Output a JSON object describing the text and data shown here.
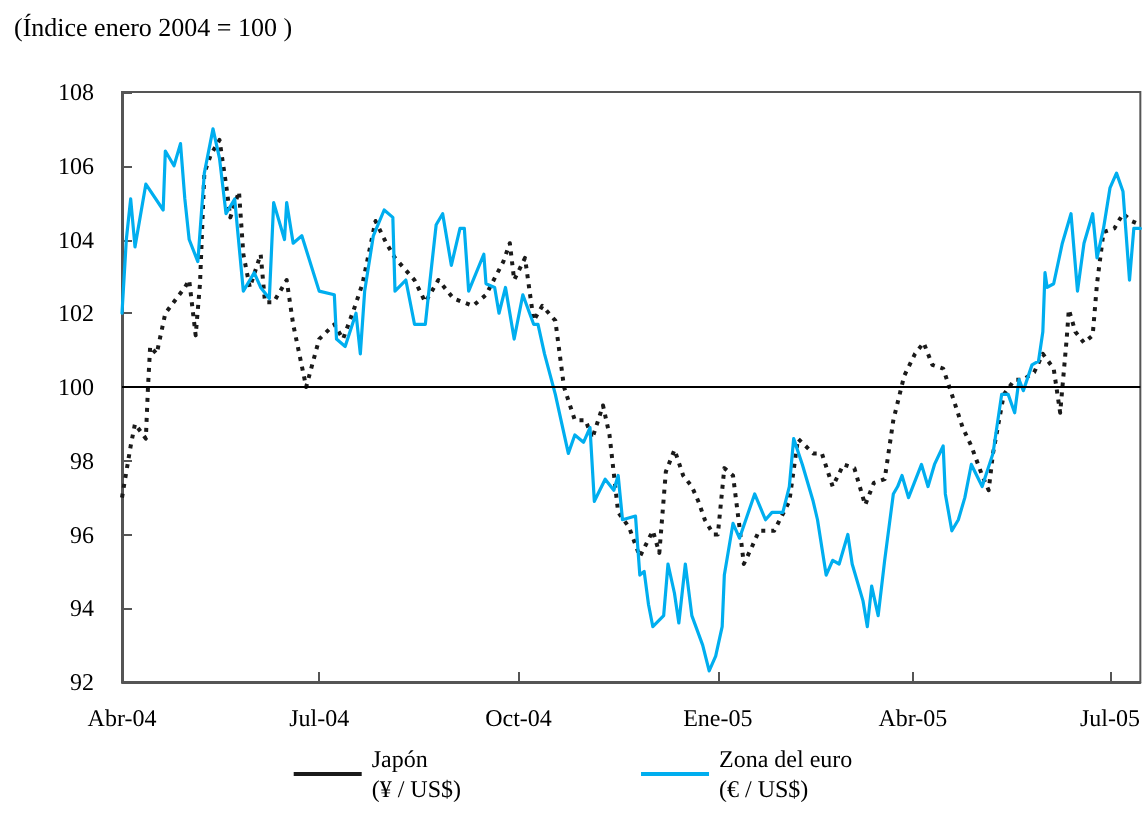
{
  "chart_data": {
    "type": "line",
    "title": "(Índice enero 2004 = 100 )",
    "xlim": [
      "2004-04-01",
      "2005-07-15"
    ],
    "xticks": [
      {
        "value": "2004-04-01",
        "label": "Abr-04"
      },
      {
        "value": "2004-07-01",
        "label": "Jul-04"
      },
      {
        "value": "2004-10-01",
        "label": "Oct-04"
      },
      {
        "value": "2005-01-01",
        "label": "Ene-05"
      },
      {
        "value": "2005-04-01",
        "label": "Abr-05"
      },
      {
        "value": "2005-07-01",
        "label": "Jul-05"
      }
    ],
    "ylim": [
      92,
      108
    ],
    "yticks": [
      92,
      94,
      96,
      98,
      100,
      102,
      104,
      106,
      108
    ],
    "grid": false,
    "legend": "bottom",
    "marker": "none",
    "ref_lines": [
      {
        "axis": "y",
        "value": 100,
        "label": null,
        "color": "#000000"
      }
    ],
    "series": [
      {
        "name": "Japón\n(¥ / US$)",
        "color": "#1a1a1a",
        "line_style": "dotted",
        "x": [
          "2004-04-01",
          "2004-04-03",
          "2004-04-05",
          "2004-04-07",
          "2004-04-12",
          "2004-04-13",
          "2004-04-14",
          "2004-04-17",
          "2004-04-21",
          "2004-04-30",
          "2004-05-02",
          "2004-05-05",
          "2004-05-07",
          "2004-05-09",
          "2004-05-12",
          "2004-05-16",
          "2004-05-19",
          "2004-05-21",
          "2004-05-25",
          "2004-05-27",
          "2004-05-30",
          "2004-06-04",
          "2004-06-06",
          "2004-06-10",
          "2004-06-16",
          "2004-06-19",
          "2004-06-25",
          "2004-07-01",
          "2004-07-08",
          "2004-07-12",
          "2004-07-17",
          "2004-07-21",
          "2004-07-27",
          "2004-08-01",
          "2004-08-05",
          "2004-08-14",
          "2004-08-19",
          "2004-08-25",
          "2004-09-01",
          "2004-09-10",
          "2004-09-16",
          "2004-09-24",
          "2004-09-27",
          "2004-09-29",
          "2004-10-04",
          "2004-10-08",
          "2004-10-12",
          "2004-10-18",
          "2004-10-22",
          "2004-10-27",
          "2004-11-01",
          "2004-11-04",
          "2004-11-09",
          "2004-11-12",
          "2004-11-16",
          "2004-11-21",
          "2004-11-26",
          "2004-12-02",
          "2004-12-05",
          "2004-12-08",
          "2004-12-12",
          "2004-12-16",
          "2004-12-20",
          "2004-12-23",
          "2004-12-26",
          "2004-12-30",
          "2005-01-01",
          "2005-01-04",
          "2005-01-08",
          "2005-01-11",
          "2005-01-13",
          "2005-01-17",
          "2005-01-20",
          "2005-01-27",
          "2005-02-03",
          "2005-02-07",
          "2005-02-14",
          "2005-02-18",
          "2005-02-23",
          "2005-02-28",
          "2005-03-05",
          "2005-03-10",
          "2005-03-14",
          "2005-03-19",
          "2005-03-23",
          "2005-03-28",
          "2005-04-02",
          "2005-04-06",
          "2005-04-10",
          "2005-04-15",
          "2005-04-19",
          "2005-04-24",
          "2005-04-28",
          "2005-05-03",
          "2005-05-06",
          "2005-05-08",
          "2005-05-13",
          "2005-05-18",
          "2005-05-22",
          "2005-05-27",
          "2005-05-31",
          "2005-06-05",
          "2005-06-08",
          "2005-06-11",
          "2005-06-12",
          "2005-06-15",
          "2005-06-19",
          "2005-06-23",
          "2005-06-25",
          "2005-06-28",
          "2005-07-03",
          "2005-07-07",
          "2005-07-11",
          "2005-07-15"
        ],
        "values": [
          97.0,
          97.7,
          98.4,
          99.0,
          98.6,
          100.0,
          101.1,
          100.9,
          102.0,
          102.7,
          102.9,
          101.4,
          102.8,
          105.8,
          106.3,
          106.7,
          105.5,
          104.6,
          105.3,
          103.6,
          102.7,
          103.6,
          102.3,
          102.3,
          102.9,
          101.7,
          100.0,
          101.3,
          101.7,
          101.3,
          102.1,
          102.8,
          104.5,
          103.9,
          103.5,
          102.9,
          102.3,
          102.9,
          102.4,
          102.2,
          102.5,
          103.4,
          103.9,
          102.9,
          103.5,
          101.8,
          102.2,
          101.8,
          100.0,
          99.1,
          99.1,
          98.6,
          99.5,
          98.7,
          96.6,
          96.2,
          95.4,
          96.1,
          95.5,
          97.7,
          98.3,
          97.6,
          97.3,
          96.9,
          96.4,
          96.0,
          96.0,
          97.8,
          97.6,
          96.2,
          95.2,
          95.7,
          96.1,
          96.1,
          96.9,
          98.6,
          98.2,
          98.2,
          97.3,
          97.9,
          97.8,
          96.8,
          97.4,
          97.5,
          99.1,
          100.3,
          100.9,
          101.2,
          100.6,
          100.5,
          99.8,
          98.9,
          98.4,
          97.6,
          97.2,
          98.2,
          99.8,
          100.2,
          100.2,
          100.4,
          100.9,
          100.5,
          99.3,
          101.3,
          102.1,
          101.5,
          101.2,
          101.4,
          102.8,
          104.2,
          104.3,
          104.7,
          104.5,
          104.4
        ]
      },
      {
        "name": "Zona del euro\n(€ / US$)",
        "color": "#00aeef",
        "line_style": "solid",
        "x": [
          "2004-04-01",
          "2004-04-03",
          "2004-04-05",
          "2004-04-07",
          "2004-04-12",
          "2004-04-20",
          "2004-04-21",
          "2004-04-25",
          "2004-04-28",
          "2004-04-30",
          "2004-05-02",
          "2004-05-06",
          "2004-05-09",
          "2004-05-13",
          "2004-05-16",
          "2004-05-19",
          "2004-05-23",
          "2004-05-27",
          "2004-06-01",
          "2004-06-04",
          "2004-06-08",
          "2004-06-10",
          "2004-06-15",
          "2004-06-16",
          "2004-06-19",
          "2004-06-23",
          "2004-07-01",
          "2004-07-08",
          "2004-07-09",
          "2004-07-13",
          "2004-07-18",
          "2004-07-20",
          "2004-07-22",
          "2004-07-26",
          "2004-07-31",
          "2004-08-04",
          "2004-08-05",
          "2004-08-10",
          "2004-08-14",
          "2004-08-19",
          "2004-08-21",
          "2004-08-24",
          "2004-08-27",
          "2004-08-31",
          "2004-09-04",
          "2004-09-06",
          "2004-09-08",
          "2004-09-15",
          "2004-09-16",
          "2004-09-20",
          "2004-09-22",
          "2004-09-25",
          "2004-09-29",
          "2004-10-03",
          "2004-10-08",
          "2004-10-10",
          "2004-10-13",
          "2004-10-18",
          "2004-10-24",
          "2004-10-27",
          "2004-10-31",
          "2004-11-03",
          "2004-11-05",
          "2004-11-10",
          "2004-11-14",
          "2004-11-16",
          "2004-11-18",
          "2004-11-24",
          "2004-11-26",
          "2004-11-28",
          "2004-11-30",
          "2004-12-02",
          "2004-12-07",
          "2004-12-09",
          "2004-12-12",
          "2004-12-14",
          "2004-12-17",
          "2004-12-20",
          "2004-12-25",
          "2004-12-28",
          "2004-12-31",
          "2005-01-03",
          "2005-01-04",
          "2005-01-08",
          "2005-01-11",
          "2005-01-18",
          "2005-01-23",
          "2005-01-26",
          "2005-01-31",
          "2005-02-03",
          "2005-02-05",
          "2005-02-09",
          "2005-02-14",
          "2005-02-16",
          "2005-02-20",
          "2005-02-23",
          "2005-02-26",
          "2005-03-02",
          "2005-03-04",
          "2005-03-09",
          "2005-03-11",
          "2005-03-13",
          "2005-03-16",
          "2005-03-19",
          "2005-03-23",
          "2005-03-25",
          "2005-03-27",
          "2005-03-30",
          "2005-04-05",
          "2005-04-08",
          "2005-04-11",
          "2005-04-15",
          "2005-04-16",
          "2005-04-19",
          "2005-04-22",
          "2005-04-25",
          "2005-04-28",
          "2005-05-03",
          "2005-05-08",
          "2005-05-12",
          "2005-05-15",
          "2005-05-18",
          "2005-05-20",
          "2005-05-22",
          "2005-05-26",
          "2005-05-29",
          "2005-05-31",
          "2005-06-01",
          "2005-06-02",
          "2005-06-05",
          "2005-06-09",
          "2005-06-13",
          "2005-06-16",
          "2005-06-19",
          "2005-06-23",
          "2005-06-25",
          "2005-06-28",
          "2005-07-01",
          "2005-07-04",
          "2005-07-07",
          "2005-07-10",
          "2005-07-12",
          "2005-07-15"
        ],
        "values": [
          102.0,
          104.0,
          105.1,
          103.8,
          105.5,
          104.8,
          106.4,
          106.0,
          106.6,
          105.1,
          104.0,
          103.4,
          105.8,
          107.0,
          106.2,
          104.7,
          105.1,
          102.6,
          103.1,
          102.7,
          102.4,
          105.0,
          104.0,
          105.0,
          103.9,
          104.1,
          102.6,
          102.5,
          101.3,
          101.1,
          102.0,
          100.9,
          102.6,
          104.1,
          104.8,
          104.6,
          102.6,
          102.9,
          101.7,
          101.7,
          102.8,
          104.4,
          104.7,
          103.3,
          104.3,
          104.3,
          102.6,
          103.6,
          102.8,
          102.7,
          102.0,
          102.7,
          101.3,
          102.5,
          101.7,
          101.7,
          100.9,
          99.8,
          98.2,
          98.7,
          98.5,
          98.9,
          96.9,
          97.5,
          97.2,
          97.6,
          96.4,
          96.5,
          94.9,
          95.0,
          94.1,
          93.5,
          93.8,
          95.2,
          94.4,
          93.6,
          95.2,
          93.8,
          93.0,
          92.3,
          92.7,
          93.5,
          94.9,
          96.3,
          95.9,
          97.1,
          96.4,
          96.6,
          96.6,
          97.3,
          98.6,
          97.9,
          96.9,
          96.4,
          94.9,
          95.3,
          95.2,
          96.0,
          95.2,
          94.2,
          93.5,
          94.6,
          93.8,
          95.3,
          97.1,
          97.3,
          97.6,
          97.0,
          97.9,
          97.3,
          97.9,
          98.4,
          97.1,
          96.1,
          96.4,
          97.0,
          97.9,
          97.3,
          98.2,
          99.8,
          99.8,
          99.3,
          100.2,
          99.9,
          100.6,
          100.7,
          101.5,
          103.1,
          102.7,
          102.8,
          103.9,
          104.7,
          102.6,
          103.9,
          104.7,
          103.5,
          104.3,
          105.4,
          105.8,
          105.3,
          102.9,
          104.3,
          104.3
        ]
      }
    ]
  }
}
